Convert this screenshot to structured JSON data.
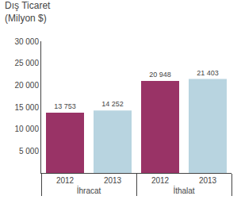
{
  "chart_data": {
    "type": "bar",
    "title": "Dış Ticaret",
    "subtitle": "(Milyon $)",
    "categories": [
      "İhracat",
      "İthalat"
    ],
    "series": [
      {
        "name": "2012",
        "color": "#993366",
        "values": [
          13753,
          20948
        ],
        "value_labels": [
          "13 753",
          "20 948"
        ]
      },
      {
        "name": "2013",
        "color": "#b8d4e0",
        "values": [
          14252,
          21403
        ],
        "value_labels": [
          "14 252",
          "21 403"
        ]
      }
    ],
    "data_labels": true,
    "ylim": [
      0,
      30000
    ],
    "yticks": [
      {
        "value": 5000,
        "label": "5 000"
      },
      {
        "value": 10000,
        "label": "10 000"
      },
      {
        "value": 15000,
        "label": "15 000"
      },
      {
        "value": 20000,
        "label": "20 000"
      },
      {
        "value": 25000,
        "label": "25 000"
      },
      {
        "value": 30000,
        "label": "30 000"
      }
    ],
    "grid": false,
    "background_color": "#ffffff"
  }
}
